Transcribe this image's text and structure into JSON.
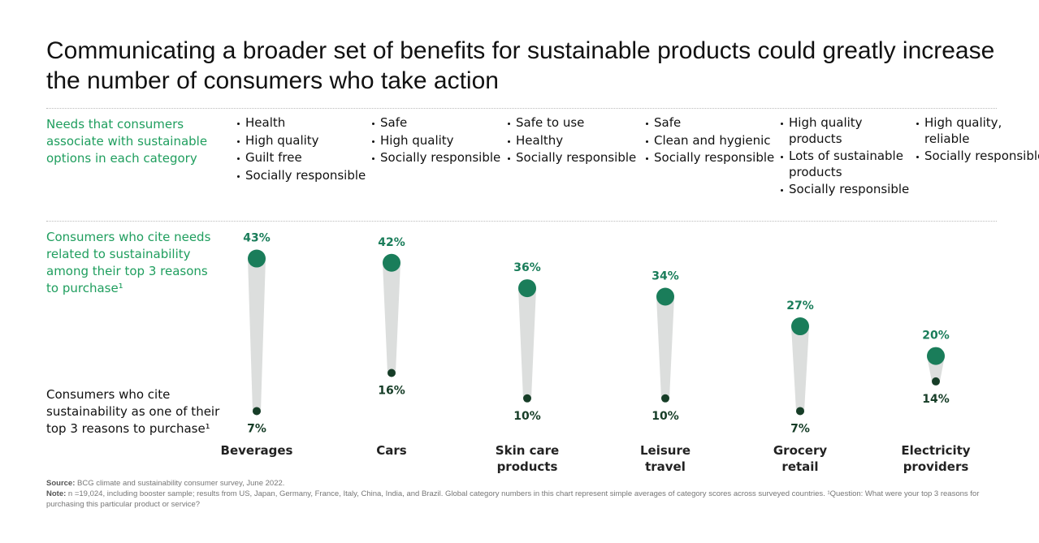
{
  "chart_data": {
    "type": "dumbbell",
    "title": "Communicating a broader set of benefits for sustainable products could greatly increase the number of consumers who take action",
    "needs_label": "Needs that consumers associate with sustainable options in each category",
    "categories": [
      "Beverages",
      "Cars",
      "Skin care products",
      "Leisure travel",
      "Grocery retail",
      "Electricity providers"
    ],
    "needs": [
      [
        "Health",
        "High quality",
        "Guilt free",
        "Socially responsible"
      ],
      [
        "Safe",
        "High quality",
        "Socially responsible"
      ],
      [
        "Safe to use",
        "Healthy",
        "Socially responsible"
      ],
      [
        "Safe",
        "Clean and hygienic",
        "Socially responsible"
      ],
      [
        "High quality products",
        "Lots of sustainable products",
        "Socially responsible"
      ],
      [
        "High quality, reliable",
        "Socially responsible"
      ]
    ],
    "series": [
      {
        "name": "Consumers who cite needs related to sustainability among their top 3 reasons to purchase¹",
        "color": "#1a7d5a",
        "values": [
          43,
          42,
          36,
          34,
          27,
          20
        ],
        "value_labels": [
          "43%",
          "42%",
          "36%",
          "34%",
          "27%",
          "20%"
        ]
      },
      {
        "name": "Consumers who cite sustainability as one of their top 3 reasons to purchase¹",
        "color": "#163d27",
        "values": [
          7,
          16,
          10,
          10,
          7,
          14
        ],
        "value_labels": [
          "7%",
          "16%",
          "10%",
          "10%",
          "7%",
          "14%"
        ]
      }
    ],
    "connector_color": "#dcdedd",
    "source_label": "Source:",
    "source": "BCG climate and sustainability consumer survey, June 2022.",
    "note_label": "Note:",
    "note": "n =19,024, including booster sample; results from US, Japan, Germany, France, Italy, China, India, and Brazil. Global category numbers in this chart represent simple averages of category scores across surveyed countries. ¹Question: What were your top 3 reasons for purchasing this particular product or service?"
  }
}
